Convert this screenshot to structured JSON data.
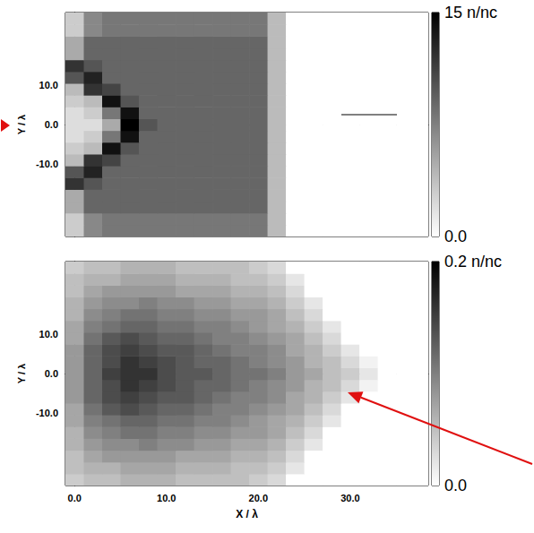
{
  "chart_data": [
    {
      "type": "heatmap",
      "x": [
        0,
        2,
        4,
        6,
        8,
        10,
        12,
        14,
        16,
        18,
        20,
        22,
        24,
        26,
        28,
        30,
        32,
        34,
        36,
        38
      ],
      "y": [
        -27,
        -24,
        -21,
        -18,
        -15,
        -12,
        -9,
        -6,
        -3,
        0,
        3,
        6,
        9,
        12,
        15,
        18,
        21,
        24,
        27
      ],
      "cells": [
        [
          3,
          7,
          8,
          8,
          8,
          8,
          8,
          8,
          8,
          8,
          8,
          4,
          0,
          0,
          0,
          0,
          0,
          0,
          0,
          0
        ],
        [
          3,
          7,
          8,
          8,
          8,
          8,
          8,
          8,
          8,
          8,
          8,
          4,
          0,
          0,
          0,
          0,
          0,
          0,
          0,
          0
        ],
        [
          5,
          9,
          9,
          9,
          9,
          9,
          9,
          9,
          9,
          9,
          9,
          4,
          0,
          0,
          0,
          0,
          0,
          0,
          0,
          0
        ],
        [
          5,
          9,
          9,
          9,
          9,
          9,
          9,
          9,
          9,
          9,
          9,
          4,
          0,
          0,
          0,
          0,
          0,
          0,
          0,
          0
        ],
        [
          12,
          10,
          9,
          9,
          9,
          9,
          9,
          9,
          9,
          9,
          9,
          4,
          0,
          0,
          0,
          0,
          0,
          0,
          0,
          0
        ],
        [
          10,
          13,
          9,
          9,
          9,
          9,
          9,
          9,
          9,
          9,
          9,
          4,
          0,
          0,
          0,
          0,
          0,
          0,
          0,
          0
        ],
        [
          4,
          12,
          11,
          9,
          9,
          9,
          9,
          9,
          9,
          9,
          9,
          4,
          0,
          0,
          0,
          0,
          0,
          0,
          0,
          0
        ],
        [
          3,
          4,
          14,
          10,
          9,
          9,
          9,
          9,
          9,
          9,
          9,
          4,
          0,
          0,
          0,
          0,
          0,
          0,
          0,
          0
        ],
        [
          2,
          3,
          8,
          14,
          9,
          9,
          9,
          9,
          9,
          9,
          9,
          4,
          0,
          0,
          0,
          0,
          0,
          0,
          0,
          0
        ],
        [
          2,
          2,
          5,
          15,
          10,
          9,
          9,
          9,
          9,
          9,
          9,
          4,
          0,
          0,
          0,
          0,
          0,
          0,
          0,
          0
        ],
        [
          2,
          3,
          8,
          14,
          9,
          9,
          9,
          9,
          9,
          9,
          9,
          4,
          0,
          0,
          0,
          0,
          0,
          0,
          0,
          0
        ],
        [
          3,
          4,
          14,
          10,
          9,
          9,
          9,
          9,
          9,
          9,
          9,
          4,
          0,
          0,
          0,
          0,
          0,
          0,
          0,
          0
        ],
        [
          4,
          12,
          11,
          9,
          9,
          9,
          9,
          9,
          9,
          9,
          9,
          4,
          0,
          0,
          0,
          0,
          0,
          0,
          0,
          0
        ],
        [
          10,
          13,
          9,
          9,
          9,
          9,
          9,
          9,
          9,
          9,
          9,
          4,
          0,
          0,
          0,
          0,
          0,
          0,
          0,
          0
        ],
        [
          12,
          10,
          9,
          9,
          9,
          9,
          9,
          9,
          9,
          9,
          9,
          4,
          0,
          0,
          0,
          0,
          0,
          0,
          0,
          0
        ],
        [
          5,
          9,
          9,
          9,
          9,
          9,
          9,
          9,
          9,
          9,
          9,
          4,
          0,
          0,
          0,
          0,
          0,
          0,
          0,
          0
        ],
        [
          5,
          9,
          9,
          9,
          9,
          9,
          9,
          9,
          9,
          9,
          9,
          4,
          0,
          0,
          0,
          0,
          0,
          0,
          0,
          0
        ],
        [
          3,
          7,
          8,
          8,
          8,
          8,
          8,
          8,
          8,
          8,
          8,
          4,
          0,
          0,
          0,
          0,
          0,
          0,
          0,
          0
        ],
        [
          3,
          7,
          8,
          8,
          8,
          8,
          8,
          8,
          8,
          8,
          8,
          4,
          0,
          0,
          0,
          0,
          0,
          0,
          0,
          0
        ]
      ],
      "xlim": [
        -1,
        38.5
      ],
      "ylim": [
        -28.5,
        28.5
      ],
      "xticks": [
        0,
        10,
        20,
        30
      ],
      "yticks": [
        {
          "value": -10,
          "label": "-10.0"
        },
        {
          "value": 0,
          "label": "0.0"
        },
        {
          "value": 10,
          "label": "10.0"
        }
      ],
      "y_label": "Y / λ",
      "colorbar_range": [
        0,
        15
      ],
      "colorbar_ticks": [
        {
          "value": 0,
          "label": "0.0"
        },
        {
          "value": 15,
          "label": "15 n/nc"
        }
      ],
      "tick_labels": "y",
      "grid": false
    },
    {
      "type": "heatmap",
      "x": [
        0,
        2,
        4,
        6,
        8,
        10,
        12,
        14,
        16,
        18,
        20,
        22,
        24,
        26,
        28,
        30,
        32,
        34,
        36,
        38
      ],
      "y": [
        -27,
        -24,
        -21,
        -18,
        -15,
        -12,
        -9,
        -6,
        -3,
        0,
        3,
        6,
        9,
        12,
        15,
        18,
        21,
        24,
        27
      ],
      "cells": [
        [
          0.04,
          0.05,
          0.05,
          0.06,
          0.06,
          0.06,
          0.05,
          0.05,
          0.05,
          0.05,
          0.04,
          0.03,
          0,
          0,
          0,
          0,
          0,
          0,
          0,
          0
        ],
        [
          0.05,
          0.06,
          0.06,
          0.07,
          0.07,
          0.07,
          0.06,
          0.06,
          0.06,
          0.05,
          0.05,
          0.04,
          0.02,
          0,
          0,
          0,
          0,
          0,
          0,
          0
        ],
        [
          0.05,
          0.07,
          0.08,
          0.08,
          0.08,
          0.08,
          0.07,
          0.07,
          0.07,
          0.06,
          0.06,
          0.05,
          0.03,
          0,
          0,
          0,
          0,
          0,
          0,
          0
        ],
        [
          0.06,
          0.08,
          0.09,
          0.09,
          0.1,
          0.09,
          0.09,
          0.08,
          0.08,
          0.07,
          0.07,
          0.06,
          0.04,
          0.02,
          0,
          0,
          0,
          0,
          0,
          0
        ],
        [
          0.06,
          0.09,
          0.1,
          0.11,
          0.11,
          0.1,
          0.1,
          0.09,
          0.09,
          0.08,
          0.08,
          0.07,
          0.05,
          0.03,
          0,
          0,
          0,
          0,
          0,
          0
        ],
        [
          0.07,
          0.1,
          0.11,
          0.12,
          0.12,
          0.11,
          0.11,
          0.1,
          0.1,
          0.09,
          0.08,
          0.07,
          0.06,
          0.04,
          0.02,
          0,
          0,
          0,
          0,
          0
        ],
        [
          0.07,
          0.11,
          0.13,
          0.14,
          0.13,
          0.12,
          0.12,
          0.11,
          0.1,
          0.1,
          0.09,
          0.08,
          0.07,
          0.05,
          0.03,
          0,
          0,
          0,
          0,
          0
        ],
        [
          0.08,
          0.12,
          0.14,
          0.15,
          0.14,
          0.13,
          0.13,
          0.12,
          0.11,
          0.1,
          0.1,
          0.09,
          0.07,
          0.06,
          0.04,
          0.02,
          0,
          0,
          0,
          0
        ],
        [
          0.08,
          0.12,
          0.14,
          0.16,
          0.15,
          0.14,
          0.13,
          0.12,
          0.12,
          0.11,
          0.1,
          0.09,
          0.08,
          0.06,
          0.05,
          0.03,
          0.01,
          0,
          0,
          0
        ],
        [
          0.08,
          0.12,
          0.15,
          0.16,
          0.16,
          0.14,
          0.13,
          0.13,
          0.12,
          0.11,
          0.11,
          0.1,
          0.08,
          0.07,
          0.05,
          0.04,
          0.02,
          0,
          0,
          0
        ],
        [
          0.08,
          0.12,
          0.14,
          0.16,
          0.15,
          0.14,
          0.13,
          0.12,
          0.12,
          0.11,
          0.1,
          0.09,
          0.08,
          0.06,
          0.05,
          0.03,
          0.01,
          0,
          0,
          0
        ],
        [
          0.08,
          0.12,
          0.14,
          0.15,
          0.14,
          0.13,
          0.13,
          0.12,
          0.11,
          0.1,
          0.1,
          0.09,
          0.07,
          0.06,
          0.04,
          0.02,
          0,
          0,
          0,
          0
        ],
        [
          0.07,
          0.11,
          0.13,
          0.14,
          0.13,
          0.12,
          0.12,
          0.11,
          0.1,
          0.1,
          0.09,
          0.08,
          0.07,
          0.05,
          0.03,
          0,
          0,
          0,
          0,
          0
        ],
        [
          0.07,
          0.1,
          0.11,
          0.12,
          0.12,
          0.11,
          0.11,
          0.1,
          0.1,
          0.09,
          0.08,
          0.07,
          0.06,
          0.04,
          0.02,
          0,
          0,
          0,
          0,
          0
        ],
        [
          0.06,
          0.09,
          0.1,
          0.11,
          0.11,
          0.1,
          0.1,
          0.09,
          0.09,
          0.08,
          0.08,
          0.07,
          0.05,
          0.03,
          0,
          0,
          0,
          0,
          0,
          0
        ],
        [
          0.06,
          0.08,
          0.09,
          0.09,
          0.1,
          0.09,
          0.09,
          0.08,
          0.08,
          0.07,
          0.07,
          0.06,
          0.04,
          0.02,
          0,
          0,
          0,
          0,
          0,
          0
        ],
        [
          0.05,
          0.07,
          0.08,
          0.08,
          0.08,
          0.08,
          0.07,
          0.07,
          0.07,
          0.06,
          0.06,
          0.05,
          0.03,
          0,
          0,
          0,
          0,
          0,
          0,
          0
        ],
        [
          0.05,
          0.06,
          0.06,
          0.07,
          0.07,
          0.07,
          0.06,
          0.06,
          0.06,
          0.05,
          0.05,
          0.04,
          0.02,
          0,
          0,
          0,
          0,
          0,
          0,
          0
        ],
        [
          0.04,
          0.05,
          0.05,
          0.06,
          0.06,
          0.06,
          0.05,
          0.05,
          0.05,
          0.05,
          0.04,
          0.03,
          0,
          0,
          0,
          0,
          0,
          0,
          0,
          0
        ]
      ],
      "xlim": [
        -1,
        38.5
      ],
      "ylim": [
        -28.5,
        28.5
      ],
      "xticks": [
        {
          "value": 0,
          "label": "0.0"
        },
        {
          "value": 10,
          "label": "10.0"
        },
        {
          "value": 20,
          "label": "20.0"
        },
        {
          "value": 30,
          "label": "30.0"
        }
      ],
      "yticks": [
        {
          "value": -10,
          "label": "-10.0"
        },
        {
          "value": 0,
          "label": "0.0"
        },
        {
          "value": 10,
          "label": "10.0"
        }
      ],
      "x_label": "X / λ",
      "y_label": "Y / λ",
      "colorbar_range": [
        0,
        0.2
      ],
      "colorbar_ticks": [
        {
          "value": 0,
          "label": "0.0"
        },
        {
          "value": 0.2,
          "label": "0.2 n/nc"
        }
      ],
      "grid": false
    }
  ]
}
